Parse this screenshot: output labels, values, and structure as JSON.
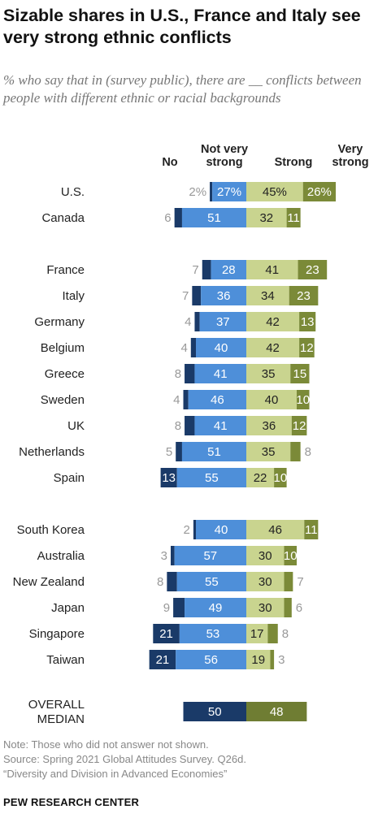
{
  "title": "Sizable shares in U.S., France and Italy see very strong ethnic conflicts",
  "subtitle": "% who say that in (survey public), there are __ conflicts between people with different ethnic or racial backgrounds",
  "colors": {
    "no": "#1a3a68",
    "not_very_strong": "#4e8fd9",
    "strong": "#c9d48f",
    "very_strong": "#7b8a38",
    "median_left": "#1a3a68",
    "median_right": "#6f7d33",
    "light_text": "#999999",
    "dark_text": "#222222",
    "white_text": "#ffffff"
  },
  "chart_data": {
    "type": "bar",
    "orientation": "horizontal",
    "layout": "diverging-stacked",
    "column_headers": [
      "No",
      "Not very\nstrong",
      "Strong",
      "Very\nstrong"
    ],
    "series": [
      {
        "name": "No",
        "side": "left"
      },
      {
        "name": "Not very strong",
        "side": "left"
      },
      {
        "name": "Strong",
        "side": "right"
      },
      {
        "name": "Very strong",
        "side": "right"
      }
    ],
    "groups": [
      {
        "rows": [
          {
            "country": "U.S.",
            "no": 2,
            "not_very": 27,
            "strong": 45,
            "very": 26,
            "labels": [
              "2%",
              "27%",
              "45%",
              "26%"
            ]
          },
          {
            "country": "Canada",
            "no": 6,
            "not_very": 51,
            "strong": 32,
            "very": 11,
            "labels": [
              "6",
              "51",
              "32",
              "11"
            ]
          }
        ]
      },
      {
        "rows": [
          {
            "country": "France",
            "no": 7,
            "not_very": 28,
            "strong": 41,
            "very": 23,
            "labels": [
              "7",
              "28",
              "41",
              "23"
            ]
          },
          {
            "country": "Italy",
            "no": 7,
            "not_very": 36,
            "strong": 34,
            "very": 23,
            "labels": [
              "7",
              "36",
              "34",
              "23"
            ]
          },
          {
            "country": "Germany",
            "no": 4,
            "not_very": 37,
            "strong": 42,
            "very": 13,
            "labels": [
              "4",
              "37",
              "42",
              "13"
            ]
          },
          {
            "country": "Belgium",
            "no": 4,
            "not_very": 40,
            "strong": 42,
            "very": 12,
            "labels": [
              "4",
              "40",
              "42",
              "12"
            ]
          },
          {
            "country": "Greece",
            "no": 8,
            "not_very": 41,
            "strong": 35,
            "very": 15,
            "labels": [
              "8",
              "41",
              "35",
              "15"
            ]
          },
          {
            "country": "Sweden",
            "no": 4,
            "not_very": 46,
            "strong": 40,
            "very": 10,
            "labels": [
              "4",
              "46",
              "40",
              "10"
            ]
          },
          {
            "country": "UK",
            "no": 8,
            "not_very": 41,
            "strong": 36,
            "very": 12,
            "labels": [
              "8",
              "41",
              "36",
              "12"
            ]
          },
          {
            "country": "Netherlands",
            "no": 5,
            "not_very": 51,
            "strong": 35,
            "very": 8,
            "labels": [
              "5",
              "51",
              "35",
              "8"
            ]
          },
          {
            "country": "Spain",
            "no": 13,
            "not_very": 55,
            "strong": 22,
            "very": 10,
            "labels": [
              "13",
              "55",
              "22",
              "10"
            ]
          }
        ]
      },
      {
        "rows": [
          {
            "country": "South Korea",
            "no": 2,
            "not_very": 40,
            "strong": 46,
            "very": 11,
            "labels": [
              "2",
              "40",
              "46",
              "11"
            ]
          },
          {
            "country": "Australia",
            "no": 3,
            "not_very": 57,
            "strong": 30,
            "very": 10,
            "labels": [
              "3",
              "57",
              "30",
              "10"
            ]
          },
          {
            "country": "New Zealand",
            "no": 8,
            "not_very": 55,
            "strong": 30,
            "very": 7,
            "labels": [
              "8",
              "55",
              "30",
              "7"
            ]
          },
          {
            "country": "Japan",
            "no": 9,
            "not_very": 49,
            "strong": 30,
            "very": 6,
            "labels": [
              "9",
              "49",
              "30",
              "6"
            ]
          },
          {
            "country": "Singapore",
            "no": 21,
            "not_very": 53,
            "strong": 17,
            "very": 8,
            "labels": [
              "21",
              "53",
              "17",
              "8"
            ]
          },
          {
            "country": "Taiwan",
            "no": 21,
            "not_very": 56,
            "strong": 19,
            "very": 3,
            "labels": [
              "21",
              "56",
              "19",
              "3"
            ]
          }
        ]
      }
    ],
    "median": {
      "label": "OVERALL\nMEDIAN",
      "left": 50,
      "right": 48,
      "labels": [
        "50",
        "48"
      ]
    }
  },
  "notes": [
    "Note: Those who did not answer not shown.",
    "Source: Spring 2021 Global Attitudes Survey. Q26d.",
    "“Diversity and Division in Advanced Economies”"
  ],
  "brand": "PEW RESEARCH CENTER"
}
